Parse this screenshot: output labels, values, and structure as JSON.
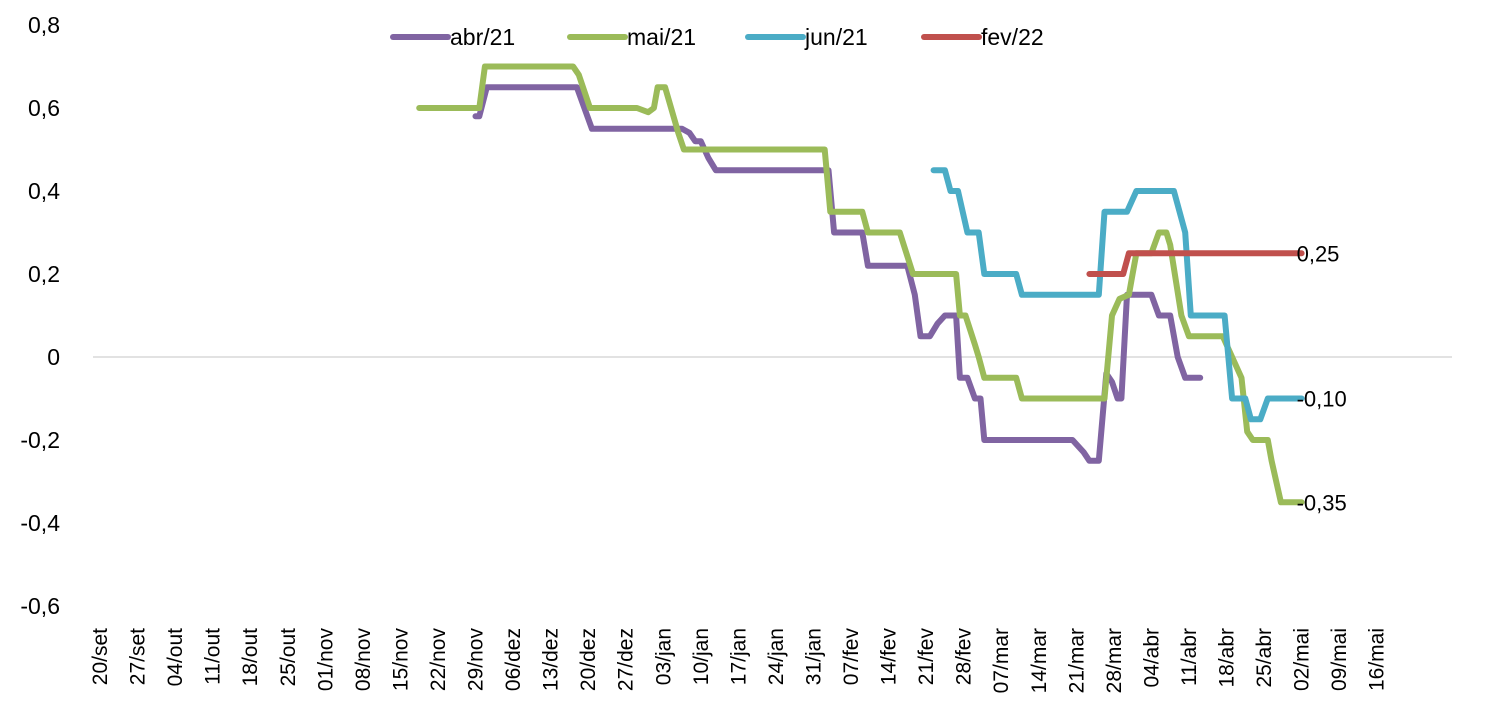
{
  "chart_data": {
    "type": "line",
    "title": "",
    "xlabel": "",
    "ylabel": "",
    "ylim": [
      -0.6,
      0.8
    ],
    "y_ticks": [
      0.8,
      0.6,
      0.4,
      0.2,
      0,
      -0.2,
      -0.4,
      -0.6
    ],
    "y_tick_labels": [
      "0,8",
      "0,6",
      "0,4",
      "0,2",
      "0",
      "-0,2",
      "-0,4",
      "-0,6"
    ],
    "categories": [
      "20/set",
      "27/set",
      "04/out",
      "11/out",
      "18/out",
      "25/out",
      "01/nov",
      "08/nov",
      "15/nov",
      "22/nov",
      "29/nov",
      "06/dez",
      "13/dez",
      "20/dez",
      "27/dez",
      "03/jan",
      "10/jan",
      "17/jan",
      "24/jan",
      "31/jan",
      "07/fev",
      "14/fev",
      "21/fev",
      "28/fev",
      "07/mar",
      "14/mar",
      "21/mar",
      "28/mar",
      "04/abr",
      "11/abr",
      "18/abr",
      "25/abr",
      "02/mai",
      "09/mai",
      "16/mai"
    ],
    "zero_line": true,
    "grid": false,
    "legend_position": "top",
    "series": [
      {
        "name": "abr/21",
        "color": "#8064a2",
        "points": [
          [
            10.0,
            0.58
          ],
          [
            10.1,
            0.58
          ],
          [
            10.3,
            0.65
          ],
          [
            12.7,
            0.65
          ],
          [
            13.1,
            0.55
          ],
          [
            15.5,
            0.55
          ],
          [
            15.7,
            0.54
          ],
          [
            15.85,
            0.52
          ],
          [
            16.0,
            0.52
          ],
          [
            16.2,
            0.48
          ],
          [
            16.4,
            0.45
          ],
          [
            19.4,
            0.45
          ],
          [
            19.55,
            0.3
          ],
          [
            20.3,
            0.3
          ],
          [
            20.45,
            0.22
          ],
          [
            21.5,
            0.22
          ],
          [
            21.7,
            0.15
          ],
          [
            21.85,
            0.05
          ],
          [
            22.1,
            0.05
          ],
          [
            22.3,
            0.08
          ],
          [
            22.5,
            0.1
          ],
          [
            22.8,
            0.1
          ],
          [
            22.9,
            -0.05
          ],
          [
            23.1,
            -0.05
          ],
          [
            23.3,
            -0.1
          ],
          [
            23.45,
            -0.1
          ],
          [
            23.55,
            -0.2
          ],
          [
            25.9,
            -0.2
          ],
          [
            26.2,
            -0.23
          ],
          [
            26.35,
            -0.25
          ],
          [
            26.6,
            -0.25
          ],
          [
            26.8,
            -0.04
          ],
          [
            26.95,
            -0.06
          ],
          [
            27.1,
            -0.1
          ],
          [
            27.2,
            -0.1
          ],
          [
            27.35,
            0.15
          ],
          [
            28.0,
            0.15
          ],
          [
            28.2,
            0.1
          ],
          [
            28.5,
            0.1
          ],
          [
            28.7,
            0.0
          ],
          [
            28.9,
            -0.05
          ],
          [
            29.3,
            -0.05
          ]
        ]
      },
      {
        "name": "mai/21",
        "color": "#9bbb59",
        "points": [
          [
            8.5,
            0.6
          ],
          [
            10.1,
            0.6
          ],
          [
            10.25,
            0.7
          ],
          [
            12.6,
            0.7
          ],
          [
            12.75,
            0.68
          ],
          [
            13.05,
            0.6
          ],
          [
            14.3,
            0.6
          ],
          [
            14.6,
            0.59
          ],
          [
            14.75,
            0.6
          ],
          [
            14.85,
            0.65
          ],
          [
            15.05,
            0.65
          ],
          [
            15.4,
            0.54
          ],
          [
            15.55,
            0.5
          ],
          [
            19.3,
            0.5
          ],
          [
            19.45,
            0.35
          ],
          [
            20.3,
            0.35
          ],
          [
            20.45,
            0.3
          ],
          [
            21.3,
            0.3
          ],
          [
            21.65,
            0.2
          ],
          [
            22.8,
            0.2
          ],
          [
            22.9,
            0.1
          ],
          [
            23.05,
            0.1
          ],
          [
            23.3,
            0.03
          ],
          [
            23.4,
            0.0
          ],
          [
            23.55,
            -0.05
          ],
          [
            24.4,
            -0.05
          ],
          [
            24.55,
            -0.1
          ],
          [
            26.3,
            -0.1
          ],
          [
            26.75,
            -0.1
          ],
          [
            26.95,
            0.1
          ],
          [
            27.15,
            0.14
          ],
          [
            27.4,
            0.15
          ],
          [
            27.5,
            0.2
          ],
          [
            27.6,
            0.25
          ],
          [
            28.0,
            0.25
          ],
          [
            28.2,
            0.3
          ],
          [
            28.4,
            0.3
          ],
          [
            28.5,
            0.27
          ],
          [
            28.8,
            0.1
          ],
          [
            29.0,
            0.05
          ],
          [
            29.9,
            0.05
          ],
          [
            30.4,
            -0.05
          ],
          [
            30.55,
            -0.18
          ],
          [
            30.7,
            -0.2
          ],
          [
            31.1,
            -0.2
          ],
          [
            31.2,
            -0.25
          ],
          [
            31.45,
            -0.35
          ],
          [
            32.0,
            -0.35
          ]
        ]
      },
      {
        "name": "jun/21",
        "color": "#4bacc6",
        "points": [
          [
            22.2,
            0.45
          ],
          [
            22.5,
            0.45
          ],
          [
            22.65,
            0.4
          ],
          [
            22.85,
            0.4
          ],
          [
            23.1,
            0.3
          ],
          [
            23.4,
            0.3
          ],
          [
            23.55,
            0.2
          ],
          [
            24.4,
            0.2
          ],
          [
            24.55,
            0.15
          ],
          [
            26.6,
            0.15
          ],
          [
            26.75,
            0.35
          ],
          [
            27.35,
            0.35
          ],
          [
            27.6,
            0.4
          ],
          [
            28.6,
            0.4
          ],
          [
            28.9,
            0.3
          ],
          [
            29.05,
            0.1
          ],
          [
            29.95,
            0.1
          ],
          [
            30.15,
            -0.1
          ],
          [
            30.5,
            -0.1
          ],
          [
            30.65,
            -0.15
          ],
          [
            30.9,
            -0.15
          ],
          [
            31.1,
            -0.1
          ],
          [
            32.0,
            -0.1
          ]
        ]
      },
      {
        "name": "fev/22",
        "color": "#c0504d",
        "points": [
          [
            26.35,
            0.2
          ],
          [
            27.25,
            0.2
          ],
          [
            27.4,
            0.25
          ],
          [
            32.0,
            0.25
          ]
        ]
      }
    ],
    "end_labels": [
      {
        "text": "0,25",
        "series": "fev/22",
        "x": 32.0,
        "y": 0.25
      },
      {
        "text": "-0,10",
        "series": "jun/21",
        "x": 32.0,
        "y": -0.1
      },
      {
        "text": "-0,35",
        "series": "mai/21",
        "x": 32.0,
        "y": -0.35
      }
    ]
  }
}
